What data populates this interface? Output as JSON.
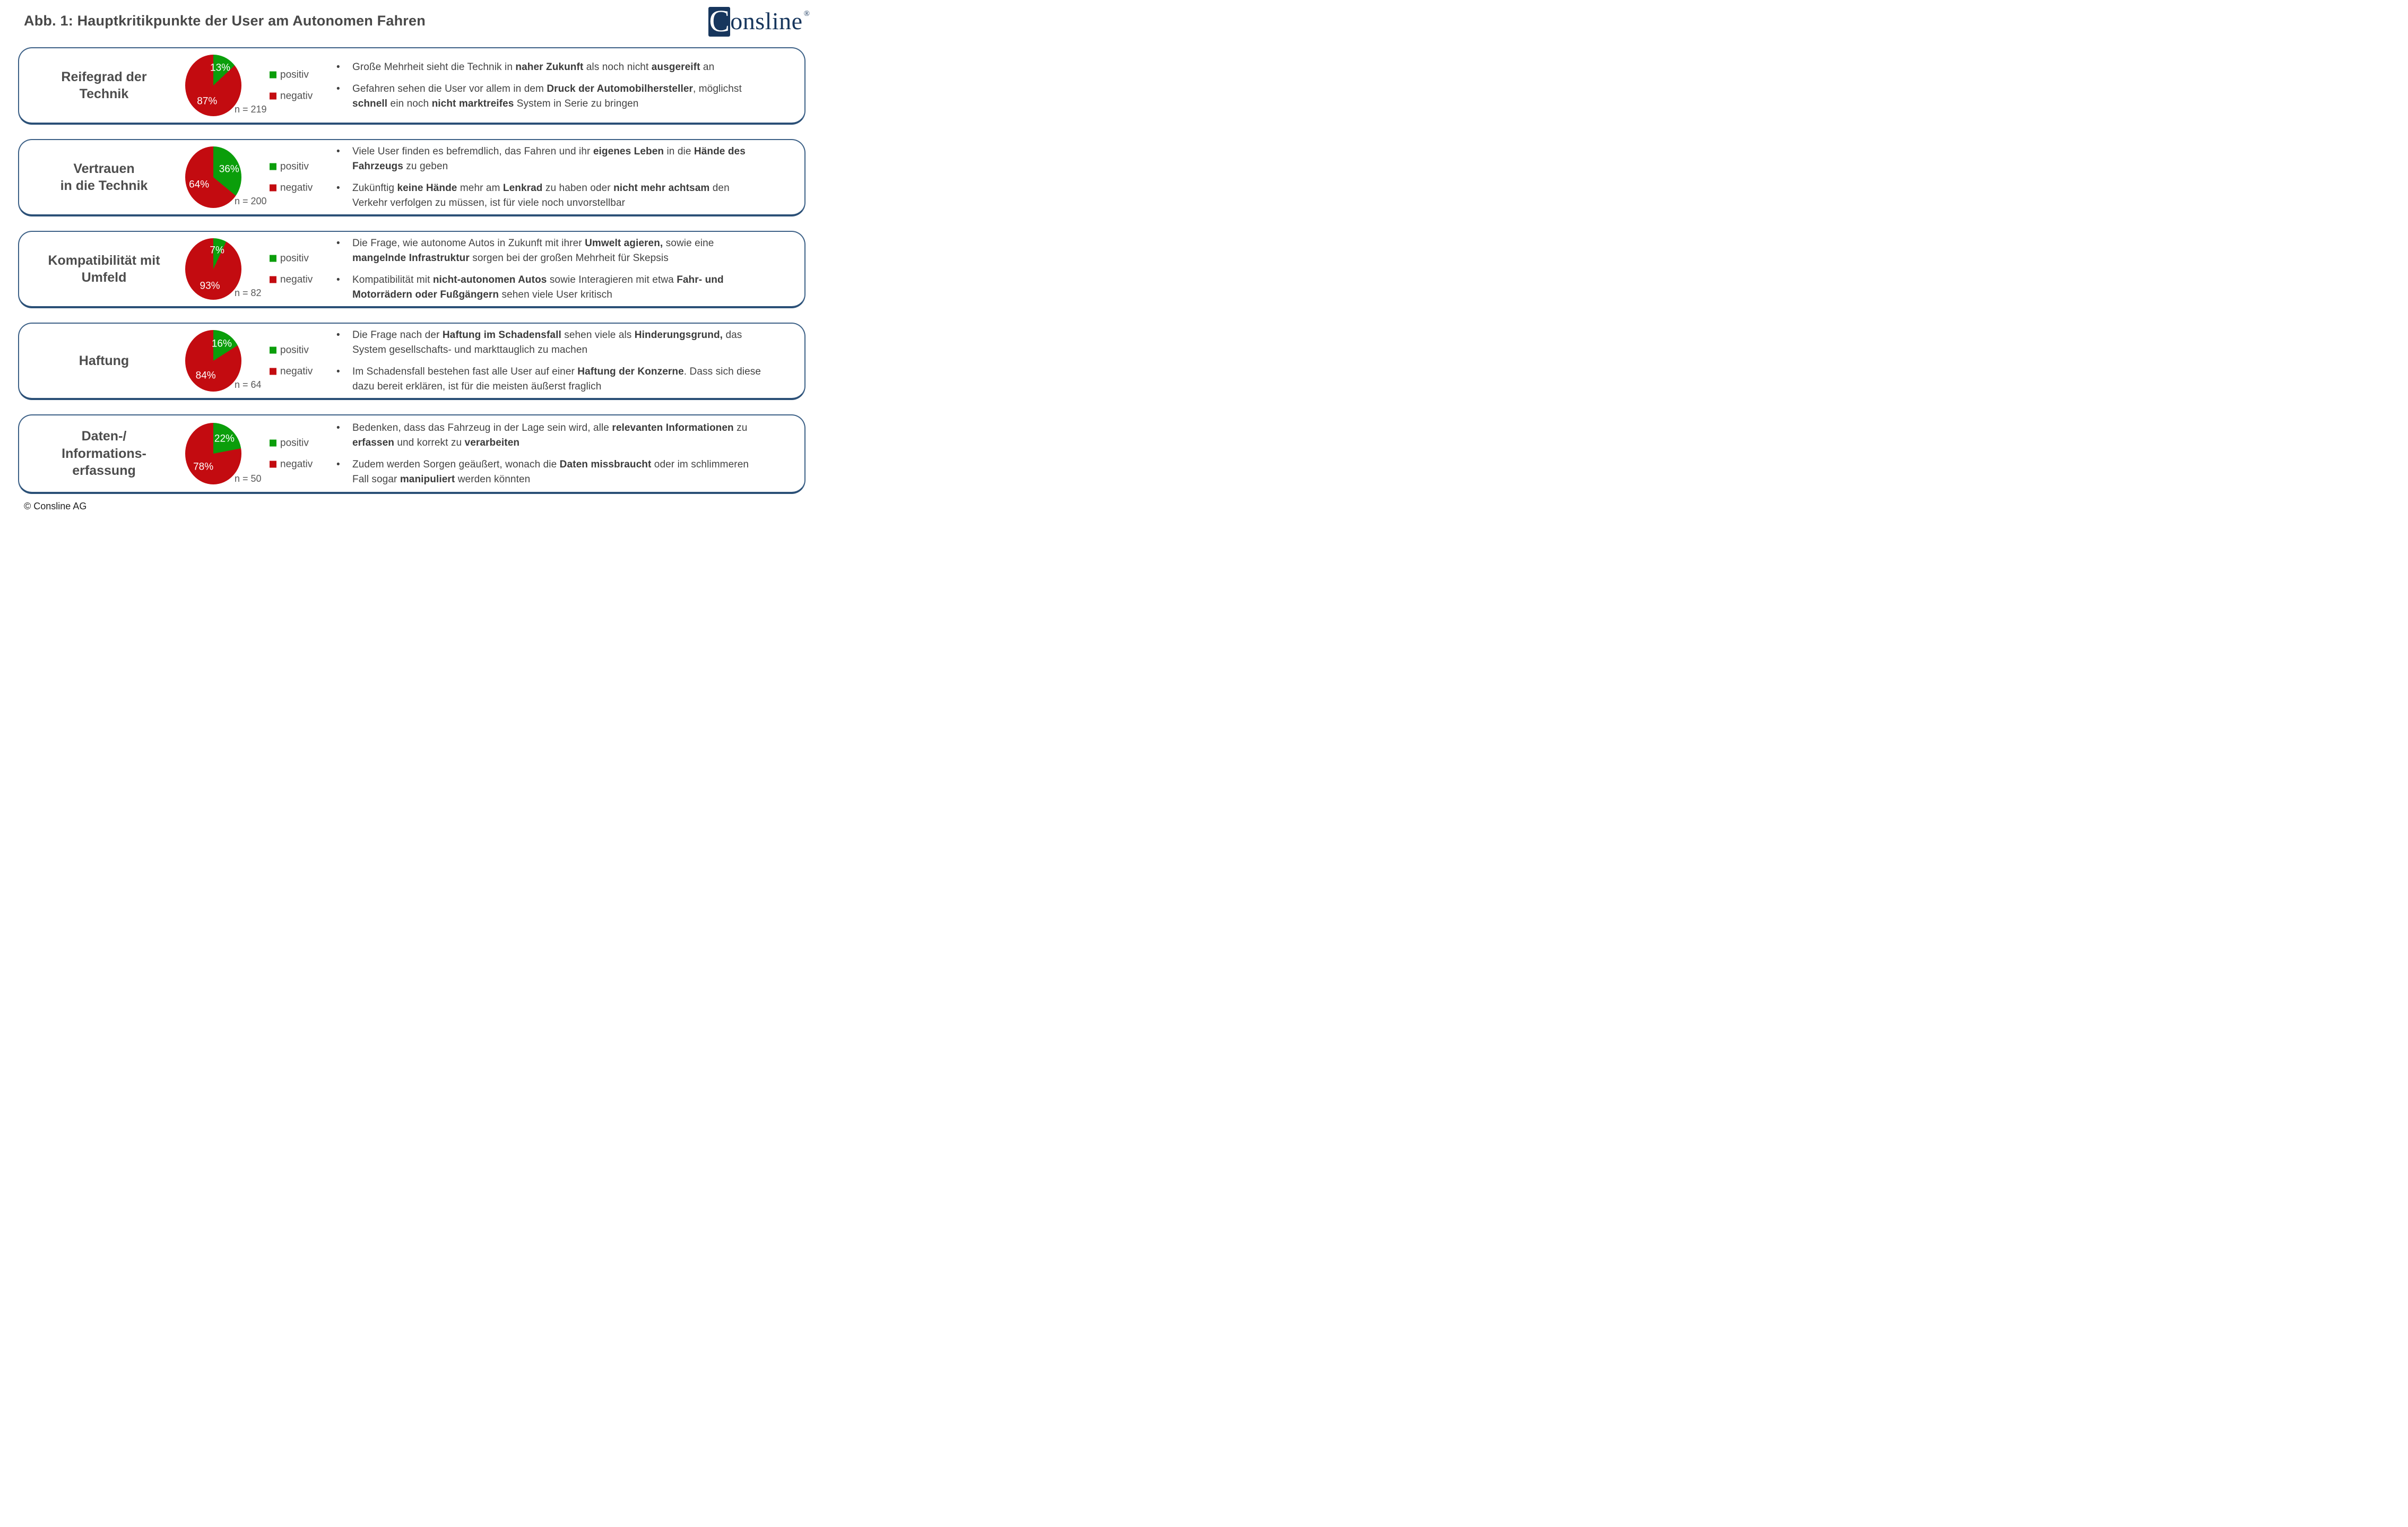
{
  "header": {
    "title": "Abb. 1: Hauptkritikpunkte der User am Autonomen Fahren"
  },
  "logo": {
    "initial": "C",
    "rest": "onsline",
    "registered": "®"
  },
  "legend": {
    "positive_label": "positiv",
    "negative_label": "negativ"
  },
  "colors": {
    "positive": "#0b9e0b",
    "negative": "#c30b10",
    "card_border": "#3d6187",
    "card_border_bottom": "#2b5077",
    "title_text": "#4d4d4d",
    "body_text": "#434343",
    "muted_text": "#595959",
    "logo_navy": "#17365d"
  },
  "rows": [
    {
      "id": "reifegrad-der-technik",
      "title_lines": [
        "Reifegrad der",
        "Technik"
      ],
      "n_label": "n = 219",
      "bullets": [
        [
          {
            "t": "Große Mehrheit sieht die Technik in "
          },
          {
            "t": "naher Zukunft",
            "b": 1
          },
          {
            "t": " als noch nicht "
          },
          {
            "t": "ausgereift",
            "b": 1
          },
          {
            "t": " an"
          }
        ],
        [
          {
            "t": "Gefahren sehen die User vor allem in dem "
          },
          {
            "t": "Druck der Automobilhersteller",
            "b": 1
          },
          {
            "t": ", möglichst "
          },
          {
            "t": "schnell",
            "b": 1
          },
          {
            "t": " ein noch "
          },
          {
            "t": "nicht marktreifes",
            "b": 1
          },
          {
            "t": " System in Serie zu bringen"
          }
        ]
      ]
    },
    {
      "id": "vertrauen-in-die-technik",
      "title_lines": [
        "Vertrauen",
        "in die Technik"
      ],
      "n_label": "n = 200",
      "bullets": [
        [
          {
            "t": "Viele User finden es befremdlich, das Fahren und ihr "
          },
          {
            "t": "eigenes Leben",
            "b": 1
          },
          {
            "t": " in die "
          },
          {
            "t": "Hände des Fahrzeugs",
            "b": 1
          },
          {
            "t": " zu geben"
          }
        ],
        [
          {
            "t": "Zukünftig "
          },
          {
            "t": "keine Hände",
            "b": 1
          },
          {
            "t": " mehr am "
          },
          {
            "t": "Lenkrad",
            "b": 1
          },
          {
            "t": " zu haben oder "
          },
          {
            "t": "nicht mehr achtsam",
            "b": 1
          },
          {
            "t": " den Verkehr verfolgen zu müssen, ist für viele noch unvorstellbar"
          }
        ]
      ]
    },
    {
      "id": "kompatibilitaet-mit-umfeld",
      "title_lines": [
        "Kompatibilität mit",
        "Umfeld"
      ],
      "n_label": "n = 82",
      "bullets": [
        [
          {
            "t": "Die Frage, wie autonome Autos in Zukunft mit ihrer "
          },
          {
            "t": "Umwelt agieren,",
            "b": 1
          },
          {
            "t": " sowie eine "
          },
          {
            "t": "mangelnde Infrastruktur",
            "b": 1
          },
          {
            "t": " sorgen bei der großen Mehrheit für Skepsis"
          }
        ],
        [
          {
            "t": "Kompatibilität mit "
          },
          {
            "t": "nicht-autonomen Autos",
            "b": 1
          },
          {
            "t": " sowie Interagieren mit etwa "
          },
          {
            "t": "Fahr- und Motorrädern oder Fußgängern",
            "b": 1
          },
          {
            "t": " sehen viele User kritisch"
          }
        ]
      ]
    },
    {
      "id": "haftung",
      "title_lines": [
        "Haftung"
      ],
      "n_label": "n = 64",
      "bullets": [
        [
          {
            "t": "Die Frage nach der "
          },
          {
            "t": "Haftung im Schadensfall",
            "b": 1
          },
          {
            "t": " sehen viele als "
          },
          {
            "t": "Hinderungsgrund,",
            "b": 1
          },
          {
            "t": " das System gesellschafts- und markttauglich zu machen"
          }
        ],
        [
          {
            "t": "Im Schadensfall bestehen fast alle User auf einer "
          },
          {
            "t": "Haftung der Konzerne",
            "b": 1
          },
          {
            "t": ". Dass sich diese dazu bereit erklären, ist für die meisten äußerst fraglich"
          }
        ]
      ]
    },
    {
      "id": "daten-informationserfassung",
      "title_lines": [
        "Daten-/",
        "Informations-",
        "erfassung"
      ],
      "n_label": "n = 50",
      "bullets": [
        [
          {
            "t": "Bedenken, dass das Fahrzeug in der Lage sein wird, alle "
          },
          {
            "t": "relevanten Informationen",
            "b": 1
          },
          {
            "t": " zu "
          },
          {
            "t": "erfassen",
            "b": 1
          },
          {
            "t": " und korrekt zu "
          },
          {
            "t": "verarbeiten",
            "b": 1
          }
        ],
        [
          {
            "t": "Zudem werden Sorgen geäußert, wonach die "
          },
          {
            "t": "Daten missbraucht",
            "b": 1
          },
          {
            "t": " oder im schlimmeren Fall sogar "
          },
          {
            "t": "manipuliert",
            "b": 1
          },
          {
            "t": " werden könnten"
          }
        ]
      ]
    }
  ],
  "chart_data": [
    {
      "type": "pie",
      "title": "Reifegrad der Technik",
      "categories": [
        "positiv",
        "negativ"
      ],
      "values": [
        13,
        87
      ],
      "percent_labels": [
        "13%",
        "87%"
      ],
      "colors": [
        "#0b9e0b",
        "#c30b10"
      ],
      "n": 219,
      "legend_position": "right",
      "start_angle_deg": 0,
      "direction": "clockwise"
    },
    {
      "type": "pie",
      "title": "Vertrauen in die Technik",
      "categories": [
        "positiv",
        "negativ"
      ],
      "values": [
        36,
        64
      ],
      "percent_labels": [
        "36%",
        "64%"
      ],
      "colors": [
        "#0b9e0b",
        "#c30b10"
      ],
      "n": 200,
      "legend_position": "right",
      "start_angle_deg": 0,
      "direction": "clockwise"
    },
    {
      "type": "pie",
      "title": "Kompatibilität mit Umfeld",
      "categories": [
        "positiv",
        "negativ"
      ],
      "values": [
        7,
        93
      ],
      "percent_labels": [
        "7%",
        "93%"
      ],
      "colors": [
        "#0b9e0b",
        "#c30b10"
      ],
      "n": 82,
      "legend_position": "right",
      "start_angle_deg": 0,
      "direction": "clockwise"
    },
    {
      "type": "pie",
      "title": "Haftung",
      "categories": [
        "positiv",
        "negativ"
      ],
      "values": [
        16,
        84
      ],
      "percent_labels": [
        "16%",
        "84%"
      ],
      "colors": [
        "#0b9e0b",
        "#c30b10"
      ],
      "n": 64,
      "legend_position": "right",
      "start_angle_deg": 0,
      "direction": "clockwise"
    },
    {
      "type": "pie",
      "title": "Daten-/Informationserfassung",
      "categories": [
        "positiv",
        "negativ"
      ],
      "values": [
        22,
        78
      ],
      "percent_labels": [
        "22%",
        "78%"
      ],
      "colors": [
        "#0b9e0b",
        "#c30b10"
      ],
      "n": 50,
      "legend_position": "right",
      "start_angle_deg": 0,
      "direction": "clockwise"
    }
  ],
  "footer": {
    "copyright": "© Consline AG"
  }
}
